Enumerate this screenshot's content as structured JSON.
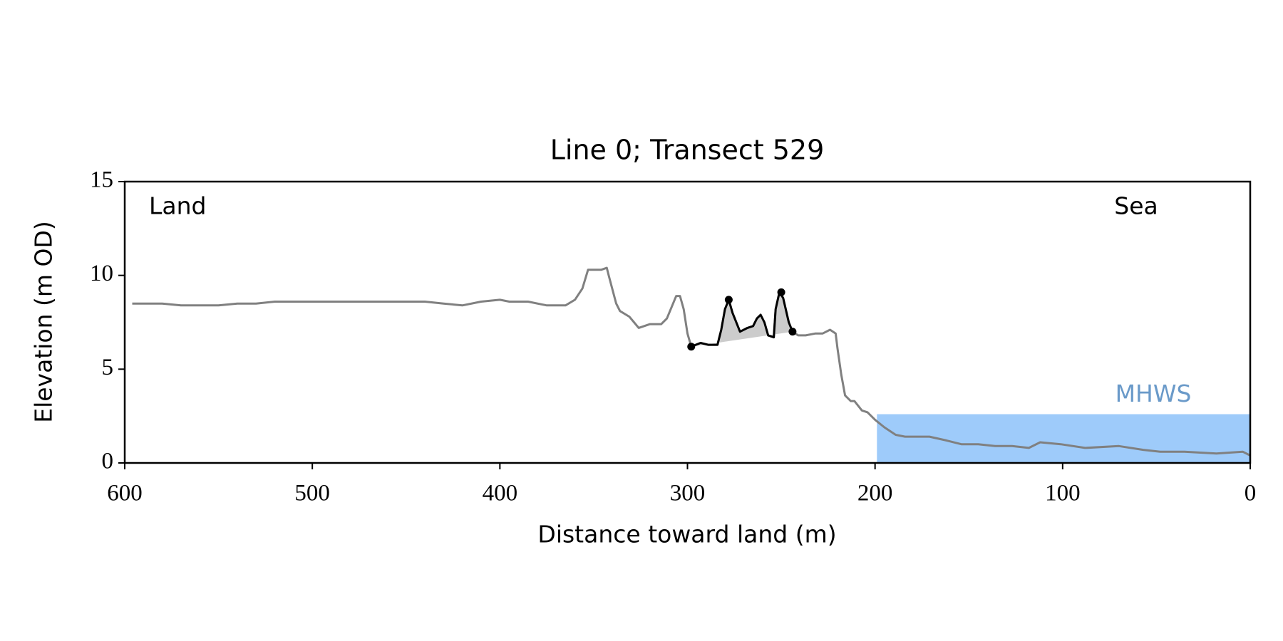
{
  "chart_data": {
    "type": "line",
    "title": "Line 0; Transect 529",
    "xlabel": "Distance toward land (m)",
    "ylabel": "Elevation (m OD)",
    "xlim": [
      600,
      0
    ],
    "ylim": [
      0,
      15
    ],
    "xticks": [
      600,
      500,
      400,
      300,
      200,
      100,
      0
    ],
    "yticks": [
      0,
      5,
      10,
      15
    ],
    "annotations": {
      "land": "Land",
      "sea": "Sea"
    },
    "mhws": {
      "label": "MHWS",
      "value": 2.6,
      "x": [
        199,
        0
      ],
      "color": "#9ecbfa",
      "label_color": "#6a9ac9"
    },
    "series": [
      {
        "color": "#808080",
        "x": [
          596,
          590,
          580,
          570,
          560,
          550,
          540,
          530,
          520,
          500,
          480,
          460,
          440,
          430,
          420,
          410,
          400,
          395,
          385,
          375,
          365,
          360,
          356,
          353,
          346,
          343,
          342,
          338,
          336,
          331,
          326,
          320,
          314,
          311,
          306,
          304,
          302,
          300,
          298,
          293,
          289,
          284,
          282,
          280,
          278,
          276,
          272,
          268,
          265,
          263,
          261,
          259,
          257,
          254,
          253,
          251,
          249,
          246,
          244,
          241,
          237,
          232,
          228,
          224,
          221,
          220,
          218,
          216,
          213,
          211,
          207,
          204,
          200,
          195,
          189,
          184,
          171,
          162,
          154,
          145,
          136,
          127,
          118,
          112,
          101,
          88,
          70,
          57,
          48,
          35,
          18,
          4,
          0
        ],
        "values": [
          8.5,
          8.5,
          8.5,
          8.4,
          8.4,
          8.4,
          8.5,
          8.5,
          8.6,
          8.6,
          8.6,
          8.6,
          8.6,
          8.5,
          8.4,
          8.6,
          8.7,
          8.6,
          8.6,
          8.4,
          8.4,
          8.7,
          9.3,
          10.3,
          10.3,
          10.4,
          10.0,
          8.5,
          8.1,
          7.8,
          7.2,
          7.4,
          7.4,
          7.7,
          8.9,
          8.9,
          8.2,
          6.9,
          6.2,
          6.4,
          6.3,
          6.3,
          7.1,
          8.2,
          8.7,
          8.0,
          7.0,
          7.2,
          7.3,
          7.7,
          7.9,
          7.5,
          6.8,
          6.7,
          8.2,
          9.1,
          8.8,
          7.5,
          7.0,
          6.8,
          6.8,
          6.9,
          6.9,
          7.1,
          6.9,
          6.1,
          4.7,
          3.6,
          3.3,
          3.3,
          2.8,
          2.7,
          2.3,
          1.9,
          1.5,
          1.4,
          1.4,
          1.2,
          1.0,
          1.0,
          0.9,
          0.9,
          0.8,
          1.1,
          1.0,
          0.8,
          0.9,
          0.7,
          0.6,
          0.6,
          0.5,
          0.6,
          0.4
        ]
      },
      {
        "color": "#000000",
        "fill": "#cccccc",
        "x": [
          298,
          293,
          289,
          284,
          282,
          280,
          278,
          276,
          272,
          268,
          265,
          263,
          261,
          259,
          257,
          254,
          253,
          251,
          249,
          246,
          244
        ],
        "values": [
          6.2,
          6.4,
          6.3,
          6.3,
          7.1,
          8.2,
          8.7,
          8.0,
          7.0,
          7.2,
          7.3,
          7.7,
          7.9,
          7.5,
          6.8,
          6.7,
          8.2,
          9.1,
          8.8,
          7.5,
          7.0
        ]
      }
    ],
    "points": {
      "color": "#000000",
      "x": [
        298,
        278,
        250,
        244
      ],
      "values": [
        6.2,
        8.7,
        9.1,
        7.0
      ]
    }
  }
}
